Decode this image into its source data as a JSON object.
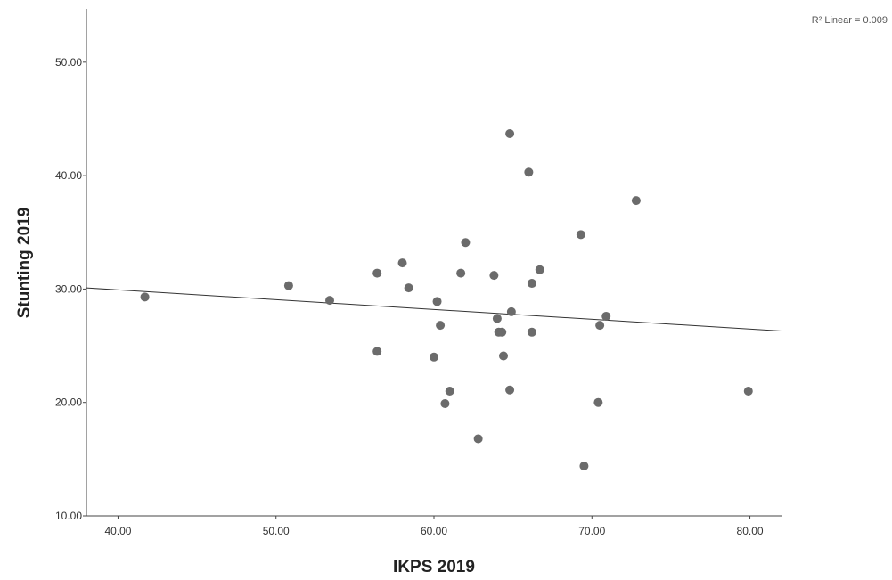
{
  "chart_data": {
    "type": "scatter",
    "xlabel": "IKPS 2019",
    "ylabel": "Stunting 2019",
    "xlim": [
      38.0,
      82.0
    ],
    "ylim": [
      10.0,
      54.7
    ],
    "xticks": [
      40,
      50,
      60,
      70,
      80
    ],
    "yticks": [
      10,
      20,
      30,
      40,
      50
    ],
    "x_tick_labels": [
      "40.00",
      "50.00",
      "60.00",
      "70.00",
      "80.00"
    ],
    "y_tick_labels": [
      "10.00",
      "20.00",
      "30.00",
      "40.00",
      "50.00"
    ],
    "grid": false,
    "annotation": "R² Linear = 0.009",
    "fit_line": {
      "x": [
        38.0,
        82.0
      ],
      "y": [
        30.1,
        26.3
      ]
    },
    "points": [
      {
        "x": 41.7,
        "y": 29.3
      },
      {
        "x": 50.8,
        "y": 30.3
      },
      {
        "x": 53.4,
        "y": 29.0
      },
      {
        "x": 56.4,
        "y": 31.4
      },
      {
        "x": 56.4,
        "y": 24.5
      },
      {
        "x": 58.0,
        "y": 32.3
      },
      {
        "x": 58.4,
        "y": 30.1
      },
      {
        "x": 60.0,
        "y": 24.0
      },
      {
        "x": 60.2,
        "y": 28.9
      },
      {
        "x": 60.4,
        "y": 26.8
      },
      {
        "x": 60.7,
        "y": 19.9
      },
      {
        "x": 61.0,
        "y": 21.0
      },
      {
        "x": 61.7,
        "y": 31.4
      },
      {
        "x": 62.0,
        "y": 34.1
      },
      {
        "x": 62.8,
        "y": 16.8
      },
      {
        "x": 63.8,
        "y": 31.2
      },
      {
        "x": 64.0,
        "y": 27.4
      },
      {
        "x": 64.1,
        "y": 26.2
      },
      {
        "x": 64.3,
        "y": 26.2
      },
      {
        "x": 64.4,
        "y": 24.1
      },
      {
        "x": 64.8,
        "y": 43.7
      },
      {
        "x": 64.8,
        "y": 21.1
      },
      {
        "x": 64.9,
        "y": 28.0
      },
      {
        "x": 66.0,
        "y": 40.3
      },
      {
        "x": 66.2,
        "y": 30.5
      },
      {
        "x": 66.2,
        "y": 26.2
      },
      {
        "x": 66.7,
        "y": 31.7
      },
      {
        "x": 69.3,
        "y": 34.8
      },
      {
        "x": 69.5,
        "y": 14.4
      },
      {
        "x": 70.4,
        "y": 20.0
      },
      {
        "x": 70.5,
        "y": 26.8
      },
      {
        "x": 70.9,
        "y": 27.6
      },
      {
        "x": 72.8,
        "y": 37.8
      },
      {
        "x": 79.9,
        "y": 21.0
      }
    ],
    "point_color": "#6b6b6b"
  }
}
